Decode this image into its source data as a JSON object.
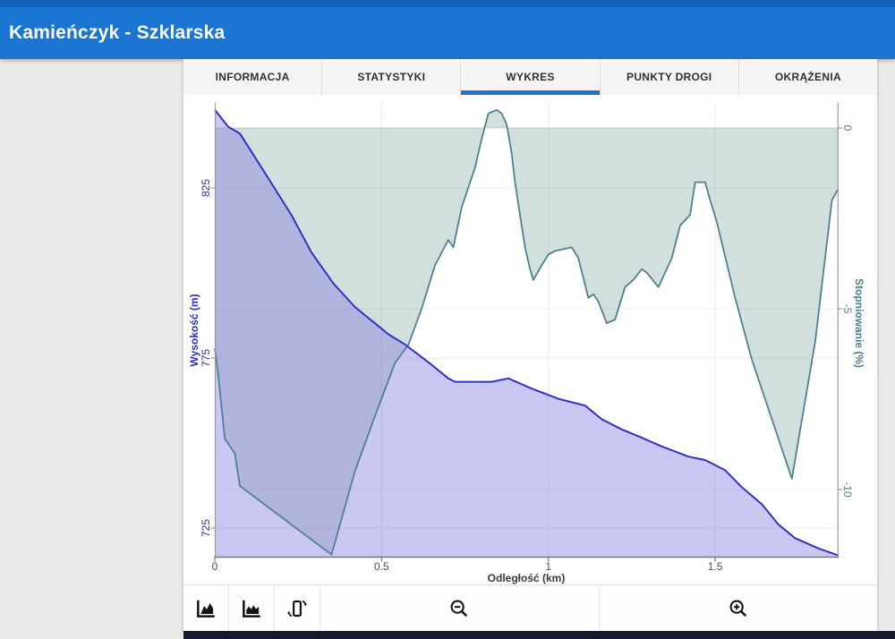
{
  "app_bar": {
    "title": "Kamieńczyk - Szklarska"
  },
  "tabs": {
    "items": [
      "INFORMACJA",
      "STATYSTYKI",
      "WYKRES",
      "PUNKTY DROGI",
      "OKRĄŻENIA"
    ],
    "active": "WYKRES"
  },
  "chart_data": {
    "type": "area",
    "title": "",
    "xlabel": "Odległość (km)",
    "x_ticks": [
      "0",
      "0.5",
      "1",
      "1.5"
    ],
    "x_tick_values": [
      0,
      0.5,
      1,
      1.5
    ],
    "xlim": [
      0,
      1.868
    ],
    "grid": true,
    "legend_position": "none",
    "left_axis": {
      "label": "Wysokość (m)",
      "tick_values": [
        825,
        775,
        725
      ],
      "range": [
        716,
        850
      ],
      "color": "#2d2dbb"
    },
    "right_axis": {
      "label": "Stopniowanie (%)",
      "tick_values": [
        0,
        -5,
        -10
      ],
      "range": [
        -12.3,
        0.7
      ],
      "color": "#47808f"
    },
    "series": [
      {
        "name": "Wysokość",
        "axis": "left",
        "line_color": "#3232c2",
        "fill_color": "rgba(125,115,225,0.40)",
        "points": [
          [
            0.0,
            848
          ],
          [
            0.04,
            843
          ],
          [
            0.075,
            841
          ],
          [
            0.14,
            831
          ],
          [
            0.23,
            817
          ],
          [
            0.29,
            806
          ],
          [
            0.355,
            797
          ],
          [
            0.42,
            790
          ],
          [
            0.47,
            786
          ],
          [
            0.52,
            782
          ],
          [
            0.57,
            779
          ],
          [
            0.65,
            773
          ],
          [
            0.7,
            769
          ],
          [
            0.72,
            768
          ],
          [
            0.83,
            768
          ],
          [
            0.88,
            769
          ],
          [
            0.95,
            766
          ],
          [
            1.03,
            763
          ],
          [
            1.11,
            761
          ],
          [
            1.16,
            757
          ],
          [
            1.22,
            754
          ],
          [
            1.27,
            752
          ],
          [
            1.34,
            749
          ],
          [
            1.42,
            746
          ],
          [
            1.47,
            745
          ],
          [
            1.53,
            742
          ],
          [
            1.58,
            737
          ],
          [
            1.64,
            732
          ],
          [
            1.69,
            726
          ],
          [
            1.74,
            722
          ],
          [
            1.81,
            719
          ],
          [
            1.868,
            717
          ]
        ]
      },
      {
        "name": "Stopniowanie",
        "axis": "right",
        "fill_to": 0,
        "line_color": "#4e8190",
        "fill_color": "rgba(75,130,120,0.25)",
        "points": [
          [
            0.0,
            -6.1
          ],
          [
            0.01,
            -6.8
          ],
          [
            0.03,
            -8.6
          ],
          [
            0.06,
            -9.0
          ],
          [
            0.075,
            -9.9
          ],
          [
            0.35,
            -11.8
          ],
          [
            0.42,
            -9.5
          ],
          [
            0.475,
            -8.1
          ],
          [
            0.54,
            -6.5
          ],
          [
            0.58,
            -6.0
          ],
          [
            0.62,
            -5.0
          ],
          [
            0.66,
            -3.8
          ],
          [
            0.7,
            -3.1
          ],
          [
            0.715,
            -3.3
          ],
          [
            0.74,
            -2.2
          ],
          [
            0.78,
            -1.1
          ],
          [
            0.8,
            -0.3
          ],
          [
            0.82,
            0.4
          ],
          [
            0.845,
            0.5
          ],
          [
            0.86,
            0.4
          ],
          [
            0.875,
            0.1
          ],
          [
            0.89,
            -0.7
          ],
          [
            0.9,
            -1.5
          ],
          [
            0.915,
            -2.4
          ],
          [
            0.93,
            -3.3
          ],
          [
            0.945,
            -3.9
          ],
          [
            0.955,
            -4.2
          ],
          [
            0.98,
            -3.8
          ],
          [
            1.0,
            -3.5
          ],
          [
            1.02,
            -3.4
          ],
          [
            1.07,
            -3.3
          ],
          [
            1.09,
            -3.6
          ],
          [
            1.12,
            -4.7
          ],
          [
            1.135,
            -4.6
          ],
          [
            1.15,
            -4.8
          ],
          [
            1.175,
            -5.4
          ],
          [
            1.2,
            -5.3
          ],
          [
            1.23,
            -4.4
          ],
          [
            1.255,
            -4.2
          ],
          [
            1.28,
            -3.9
          ],
          [
            1.295,
            -4.0
          ],
          [
            1.33,
            -4.4
          ],
          [
            1.37,
            -3.6
          ],
          [
            1.395,
            -2.7
          ],
          [
            1.425,
            -2.4
          ],
          [
            1.44,
            -1.5
          ],
          [
            1.47,
            -1.5
          ],
          [
            1.485,
            -2.0
          ],
          [
            1.505,
            -2.6
          ],
          [
            1.56,
            -4.7
          ],
          [
            1.61,
            -6.4
          ],
          [
            1.73,
            -9.7
          ],
          [
            1.8,
            -5.9
          ],
          [
            1.85,
            -2.0
          ],
          [
            1.868,
            -1.7
          ]
        ]
      }
    ]
  },
  "toolbar": {
    "buttons": [
      {
        "name": "elevation-area-chart-button",
        "icon": "area-chart-icon",
        "size": "small"
      },
      {
        "name": "gradient-area-chart-button",
        "icon": "area-chart-alt-icon",
        "size": "small"
      },
      {
        "name": "rotate-screen-button",
        "icon": "rotate-screen-icon",
        "size": "small"
      },
      {
        "name": "zoom-out-button",
        "icon": "zoom-out-icon",
        "size": "wide"
      },
      {
        "name": "zoom-in-button",
        "icon": "zoom-in-icon",
        "size": "wide"
      }
    ]
  },
  "colors": {
    "app_bar": "#1b76d3",
    "status_bar": "#1563b8",
    "tab_underline": "#1b76d3",
    "page_bg": "#ebe9e8",
    "bottom_strip": "#1a1a2e",
    "axis_line": "#9a9a9a",
    "x_text": "#4f4f4f",
    "grid": "#eceaec"
  }
}
